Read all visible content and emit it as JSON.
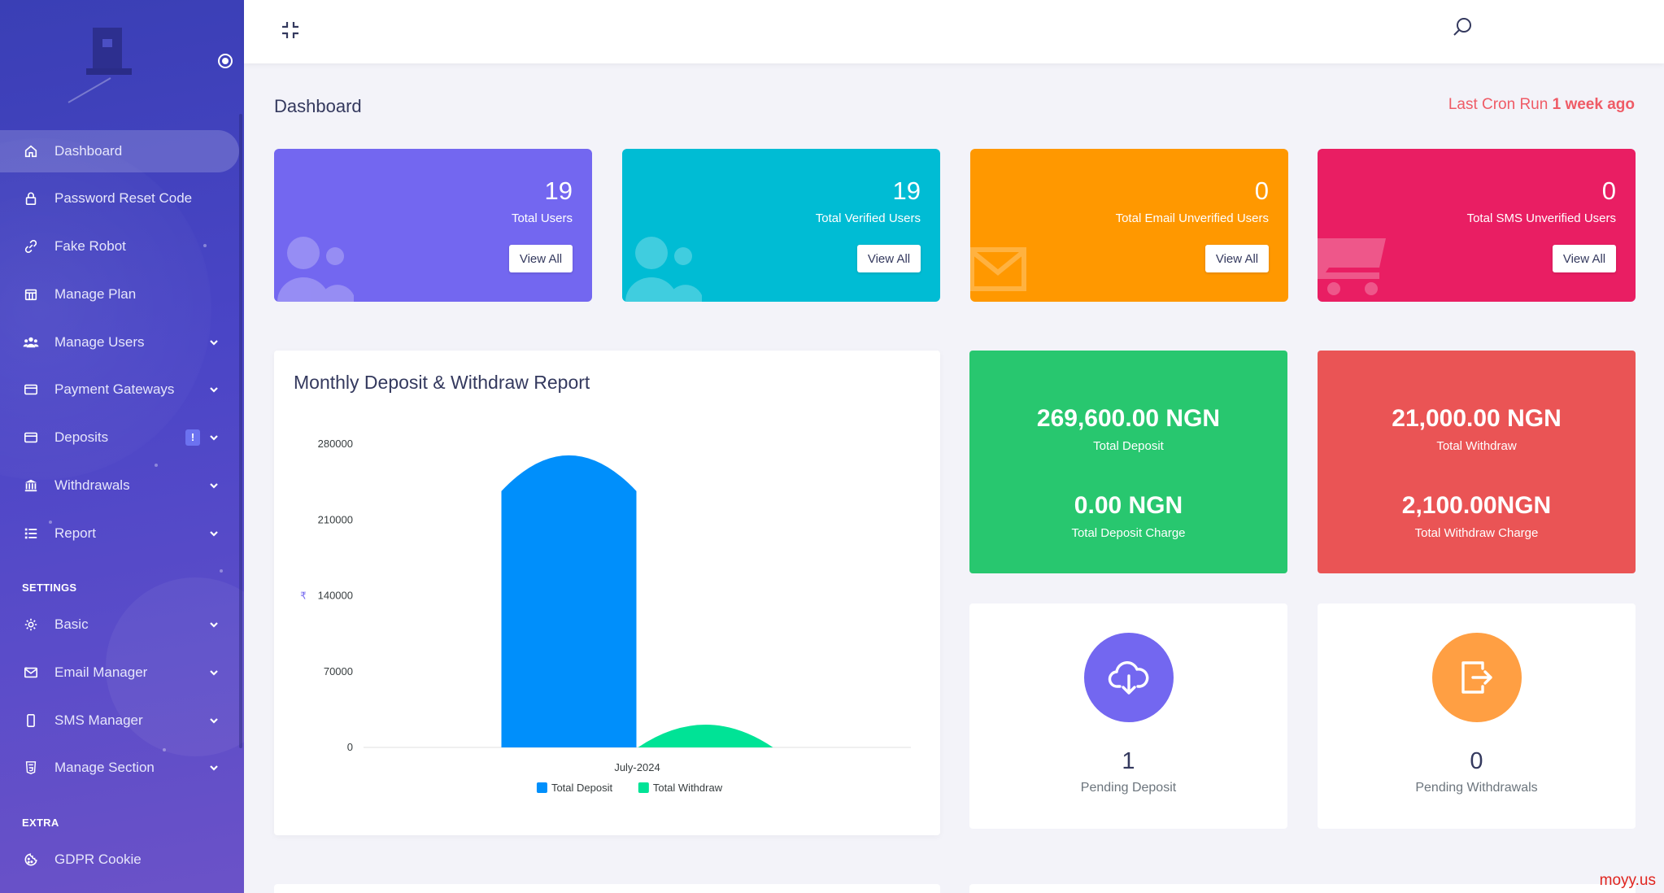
{
  "sidebar": {
    "items": [
      {
        "label": "Dashboard",
        "icon": "home-icon"
      },
      {
        "label": "Password Reset Code",
        "icon": "lock-icon"
      },
      {
        "label": "Fake Robot",
        "icon": "link-icon"
      },
      {
        "label": "Manage Plan",
        "icon": "plan-icon"
      },
      {
        "label": "Manage Users",
        "icon": "users-icon"
      },
      {
        "label": "Payment Gateways",
        "icon": "credit-card-icon"
      },
      {
        "label": "Deposits",
        "icon": "credit-card-icon",
        "badge": "!"
      },
      {
        "label": "Withdrawals",
        "icon": "bank-icon"
      },
      {
        "label": "Report",
        "icon": "list-icon"
      }
    ],
    "settings_title": "SETTINGS",
    "settings_items": [
      {
        "label": "Basic",
        "icon": "gear-icon"
      },
      {
        "label": "Email Manager",
        "icon": "envelope-icon"
      },
      {
        "label": "SMS Manager",
        "icon": "mobile-icon"
      },
      {
        "label": "Manage Section",
        "icon": "html5-icon"
      }
    ],
    "extra_title": "EXTRA",
    "extra_items": [
      {
        "label": "GDPR Cookie",
        "icon": "cookie-icon"
      }
    ]
  },
  "header": {
    "title": "Dashboard",
    "cron_label": "Last Cron Run",
    "cron_value": "1 week ago"
  },
  "stats": [
    {
      "value": "19",
      "label": "Total Users",
      "button": "View All",
      "color": "#7367f0",
      "icon": "users-icon"
    },
    {
      "value": "19",
      "label": "Total Verified Users",
      "button": "View All",
      "color": "#00bcd4",
      "icon": "users-icon"
    },
    {
      "value": "0",
      "label": "Total Email Unverified Users",
      "button": "View All",
      "color": "#ff9800",
      "icon": "envelope-icon"
    },
    {
      "value": "0",
      "label": "Total SMS Unverified Users",
      "button": "View All",
      "color": "#e91e63",
      "icon": "cart-icon"
    }
  ],
  "chart_data": {
    "type": "bar",
    "title": "Monthly Deposit & Withdraw Report",
    "ylabel": "₹",
    "categories": [
      "July-2024"
    ],
    "series": [
      {
        "name": "Total Deposit",
        "values": [
          269600
        ],
        "color": "#008ffb"
      },
      {
        "name": "Total Withdraw",
        "values": [
          21000
        ],
        "color": "#00e396"
      }
    ],
    "yticks": [
      "280000",
      "210000",
      "140000",
      "70000",
      "0"
    ],
    "ylim": [
      0,
      280000
    ],
    "legend": "bottom-center"
  },
  "totals": {
    "deposit": {
      "value": "269,600.00 NGN",
      "label": "Total Deposit",
      "charge_value": "0.00 NGN",
      "charge_label": "Total Deposit Charge",
      "color": "#28c76f"
    },
    "withdraw": {
      "value": "21,000.00 NGN",
      "label": "Total Withdraw",
      "charge_value": "2,100.00NGN",
      "charge_label": "Total Withdraw Charge",
      "color": "#ea5455"
    }
  },
  "pending": {
    "deposit": {
      "value": "1",
      "label": "Pending Deposit",
      "color": "#7367f0",
      "icon": "cloud-download-icon"
    },
    "withdraw": {
      "value": "0",
      "label": "Pending Withdrawals",
      "color": "#ff9f43",
      "icon": "sign-out-icon"
    }
  },
  "watermark": "moyy.us"
}
